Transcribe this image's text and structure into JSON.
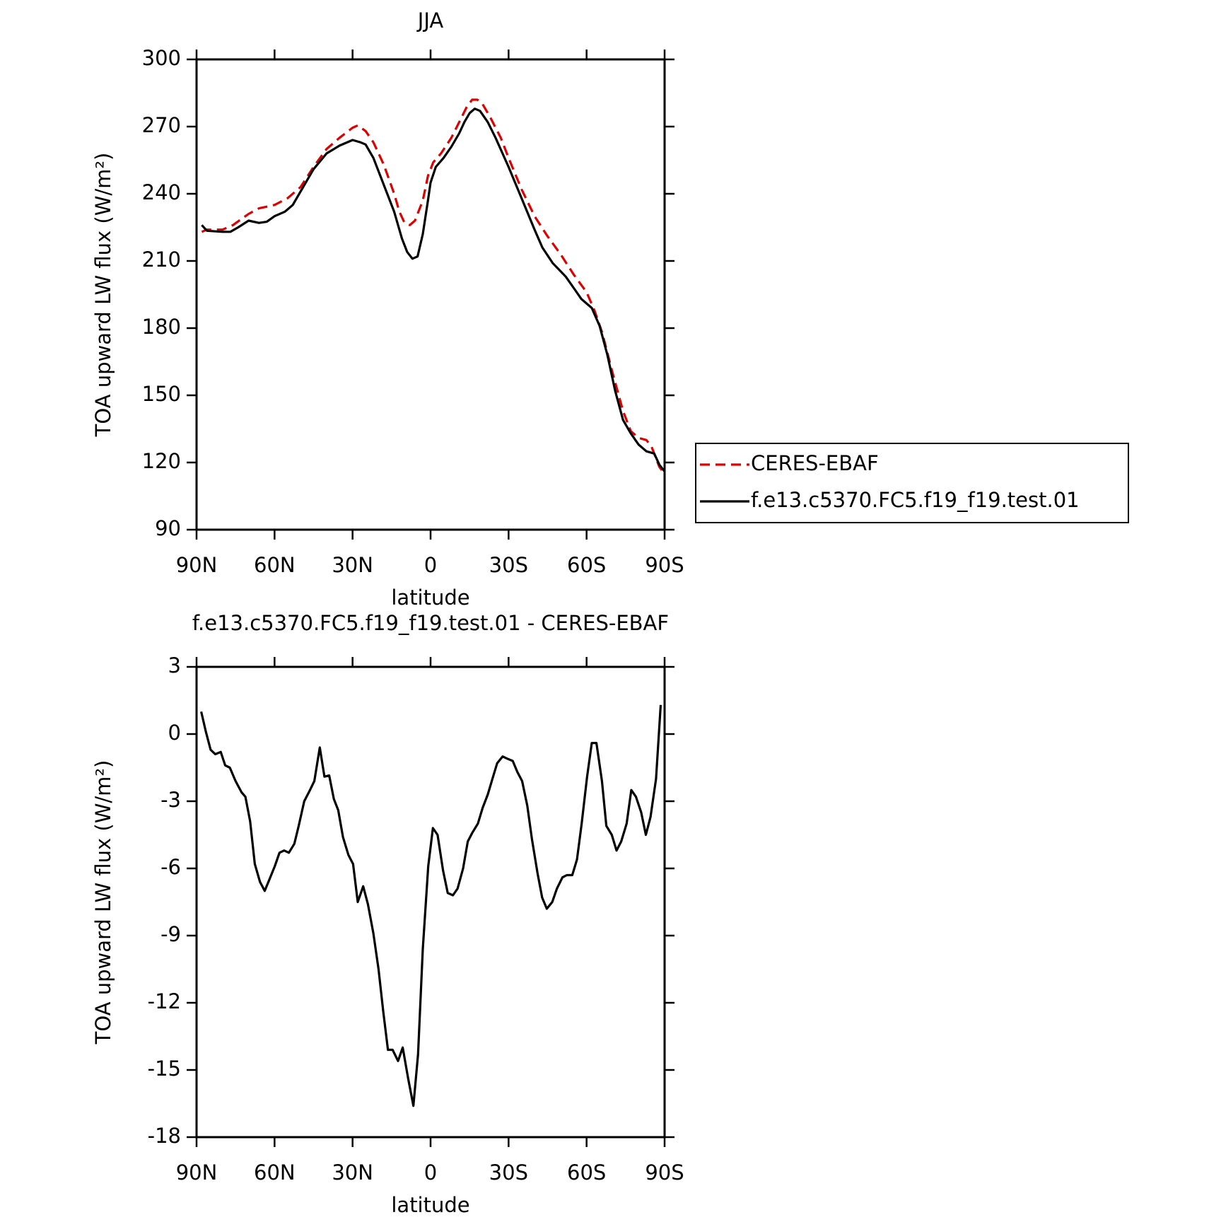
{
  "chart_data": [
    {
      "type": "line",
      "title": "JJA",
      "xlabel": "latitude",
      "ylabel": "TOA upward LW flux (W/m²)",
      "xlim": [
        90,
        -90
      ],
      "xticks": [
        {
          "value": 90,
          "label": "90N"
        },
        {
          "value": 60,
          "label": "60N"
        },
        {
          "value": 30,
          "label": "30N"
        },
        0,
        {
          "value": -30,
          "label": "30S"
        },
        {
          "value": -60,
          "label": "60S"
        },
        {
          "value": -90,
          "label": "90S"
        }
      ],
      "ylim": [
        90,
        300
      ],
      "yticks": [
        90,
        120,
        150,
        180,
        210,
        240,
        270,
        300
      ],
      "legend": "outside-right",
      "series": [
        {
          "name": "CERES-EBAF",
          "color": "#e00000",
          "dashed": true,
          "x": [
            88,
            86,
            80,
            76,
            70,
            66,
            60,
            55,
            50,
            45,
            40,
            35,
            30,
            28,
            25,
            22,
            18,
            14,
            12,
            10,
            8,
            6,
            3,
            1,
            -1,
            -4,
            -8,
            -11,
            -14,
            -16,
            -18,
            -20,
            -23,
            -27,
            -30,
            -35,
            -40,
            -45,
            -50,
            -55,
            -60,
            -63,
            -66,
            -70,
            -74,
            -77,
            -80,
            -83,
            -85,
            -88,
            -90
          ],
          "values": [
            223,
            224,
            224,
            226,
            231,
            233.5,
            235,
            238,
            243,
            252,
            260,
            265,
            269.5,
            270.5,
            268,
            263,
            253,
            240,
            232,
            227,
            226,
            228,
            237,
            248,
            254,
            258,
            265,
            272,
            279,
            282,
            282,
            280,
            274,
            265,
            256,
            242,
            230,
            221,
            213,
            204,
            196,
            188,
            178,
            160,
            143,
            134,
            131,
            130,
            127,
            118,
            115
          ]
        },
        {
          "name": "f.e13.c5370.FC5.f19_f19.test.01",
          "color": "#000000",
          "dashed": false,
          "x": [
            88,
            86,
            80,
            77,
            74,
            70,
            66,
            63,
            60,
            56,
            53,
            50,
            45,
            40,
            35,
            30,
            27,
            25,
            22,
            18,
            14,
            11,
            9,
            7,
            5,
            3,
            1,
            0,
            -2,
            -5,
            -8,
            -11,
            -13,
            -15,
            -17,
            -19,
            -22,
            -25,
            -30,
            -35,
            -40,
            -43,
            -47,
            -52,
            -55,
            -58,
            -62,
            -65,
            -68,
            -71,
            -74,
            -77,
            -80,
            -83,
            -86,
            -88,
            -90
          ],
          "values": [
            226,
            223.5,
            223,
            223,
            225,
            228,
            227,
            227.5,
            230,
            232,
            235,
            241,
            251,
            258,
            261.5,
            264,
            263,
            262,
            256,
            244,
            232,
            220,
            214,
            211,
            212,
            222,
            237,
            245,
            252,
            256,
            261,
            267,
            272,
            276,
            278,
            277,
            272,
            265,
            252,
            238,
            224,
            216,
            209,
            203,
            198,
            193,
            189,
            181,
            168,
            152,
            139,
            133,
            128,
            125,
            124,
            119,
            116
          ]
        }
      ]
    },
    {
      "type": "line",
      "title": "f.e13.c5370.FC5.f19_f19.test.01 - CERES-EBAF",
      "xlabel": "latitude",
      "ylabel": "TOA upward LW flux (W/m²)",
      "xlim": [
        90,
        -90
      ],
      "xticks": [
        {
          "value": 90,
          "label": "90N"
        },
        {
          "value": 60,
          "label": "60N"
        },
        {
          "value": 30,
          "label": "30N"
        },
        0,
        {
          "value": -30,
          "label": "30S"
        },
        {
          "value": -60,
          "label": "60S"
        },
        {
          "value": -90,
          "label": "90S"
        }
      ],
      "ylim": [
        -18,
        3
      ],
      "yticks": [
        -18,
        -15,
        -12,
        -9,
        -6,
        -3,
        0,
        3
      ],
      "color": "#000000",
      "x": [
        88.2,
        86.4,
        84.6,
        82.8,
        80.7,
        79,
        77.2,
        75,
        72.7,
        71.2,
        69.4,
        67.6,
        65.6,
        63.8,
        62,
        59.9,
        58.1,
        56.3,
        54.5,
        52.4,
        50.7,
        48.6,
        46.8,
        44.7,
        42.6,
        40.8,
        39,
        37.2,
        35.5,
        33.7,
        31.6,
        29.8,
        28,
        25.9,
        24.1,
        22,
        20,
        18.2,
        16.4,
        14.6,
        12.5,
        10.7,
        8.6,
        6.6,
        4.8,
        3,
        0.9,
        -0.9,
        -2.7,
        -4.8,
        -6.6,
        -8.6,
        -10.4,
        -12.5,
        -14.3,
        -16.1,
        -18.2,
        -20,
        -22,
        -23.8,
        -25.6,
        -27.7,
        -29.5,
        -31.6,
        -33.4,
        -35.2,
        -37.2,
        -39,
        -41.1,
        -42.9,
        -44.7,
        -46.8,
        -48.6,
        -50.7,
        -52.4,
        -54.5,
        -56.3,
        -58.1,
        -60.2,
        -62,
        -63.8,
        -65.9,
        -67.6,
        -69.7,
        -71.5,
        -73.3,
        -75.4,
        -77.2,
        -79,
        -81,
        -82.8,
        -84.6,
        -86.7,
        -88.5
      ],
      "values": [
        1.0,
        0.1,
        -0.7,
        -0.9,
        -0.8,
        -1.4,
        -1.5,
        -2.1,
        -2.6,
        -2.8,
        -3.9,
        -5.8,
        -6.6,
        -7.0,
        -6.5,
        -5.9,
        -5.3,
        -5.2,
        -5.3,
        -4.9,
        -4.1,
        -3.0,
        -2.6,
        -2.1,
        -0.6,
        -1.9,
        -1.85,
        -2.9,
        -3.4,
        -4.6,
        -5.4,
        -5.8,
        -7.5,
        -6.8,
        -7.6,
        -8.9,
        -10.5,
        -12.4,
        -14.1,
        -14.1,
        -14.6,
        -14.0,
        -15.4,
        -16.6,
        -14.3,
        -9.6,
        -5.9,
        -4.2,
        -4.5,
        -6.1,
        -7.1,
        -7.2,
        -6.9,
        -6.0,
        -4.8,
        -4.4,
        -4.0,
        -3.3,
        -2.7,
        -2.0,
        -1.3,
        -1.0,
        -1.1,
        -1.2,
        -1.7,
        -2.1,
        -3.2,
        -4.7,
        -6.2,
        -7.3,
        -7.8,
        -7.5,
        -6.9,
        -6.4,
        -6.3,
        -6.3,
        -5.6,
        -4.0,
        -1.9,
        -0.4,
        -0.4,
        -2.1,
        -4.1,
        -4.5,
        -5.2,
        -4.8,
        -4.0,
        -2.5,
        -2.8,
        -3.5,
        -4.5,
        -3.7,
        -2.0,
        1.3
      ]
    }
  ]
}
